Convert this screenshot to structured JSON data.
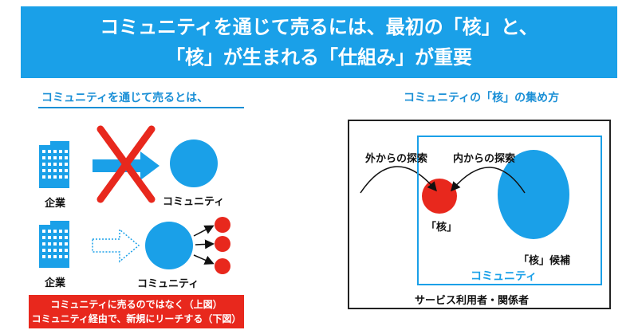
{
  "header": {
    "line1": "コミュニティを通じて売るには、最初の「核」と、",
    "line2": "「核」が生まれる「仕組み」が重要"
  },
  "left": {
    "title": "コミュニティを通じて売るとは、",
    "top_row": {
      "company": "企業",
      "community": "コミュニティ"
    },
    "bottom_row": {
      "company": "企業",
      "community": "コミュニティ"
    },
    "note_line1": "コミュニティに売るのではなく（上図）",
    "note_line2": "コミュニティ経由で、新規にリーチする（下図）"
  },
  "right": {
    "title": "コミュニティの「核」の集め方",
    "outer_search": "外からの探索",
    "inner_search": "内からの探索",
    "core": "「核」",
    "core_candidate": "「核」候補",
    "community": "コミュニティ",
    "users": "サービス利用者・関係者"
  },
  "colors": {
    "blue": "#1aa0e8",
    "red": "#e8281d"
  }
}
